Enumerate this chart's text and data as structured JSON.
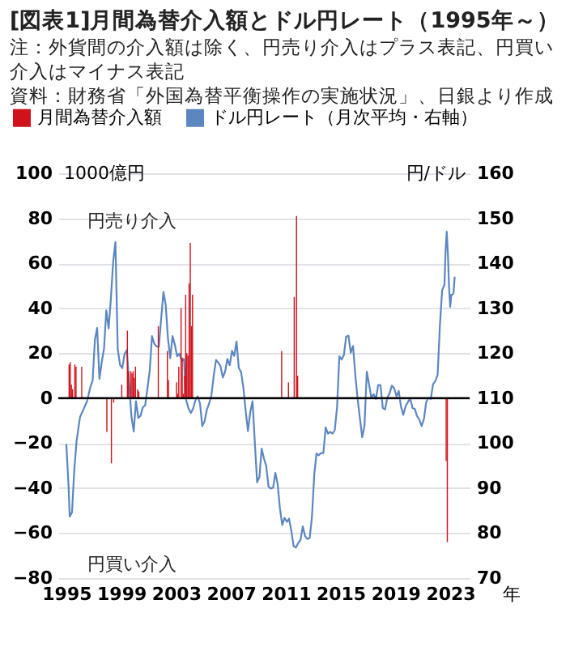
{
  "chart_data": {
    "type": "bar",
    "title": "[図表1]月間為替介入額とドル円レート（1995年～）",
    "ylabel": "1000億円",
    "y2label": "円/ドル",
    "xlabel": "年",
    "annotations": [
      "注：外貨間の介入額は除く、円売り介入はプラス表記、円買い介入はマイナス表記",
      "資料：財務省「外国為替平衡操作の実施状況」、日銀より作成",
      "円売り介入",
      "円買い介入"
    ],
    "series": [
      {
        "name": "月間為替介入額",
        "color": "#d0121b",
        "x": [
          "1995-03",
          "1995-04",
          "1995-05",
          "1995-06",
          "1995-08",
          "1995-09",
          "1996-02",
          "1997-12",
          "1998-04",
          "1998-06",
          "1999-01",
          "1999-06",
          "1999-07",
          "1999-09",
          "1999-10",
          "1999-11",
          "1999-12",
          "2000-01",
          "2000-03",
          "2000-04",
          "2001-09",
          "2002-05",
          "2002-06",
          "2003-01",
          "2003-02",
          "2003-03",
          "2003-05",
          "2003-06",
          "2003-07",
          "2003-08",
          "2003-09",
          "2003-10",
          "2003-11",
          "2003-12",
          "2004-01",
          "2004-02",
          "2004-03",
          "2010-09",
          "2011-03",
          "2011-08",
          "2011-10",
          "2011-11",
          "2022-09",
          "2022-10"
        ],
        "values": [
          15,
          16,
          6,
          4,
          15,
          14,
          14,
          -15,
          -29,
          -2,
          6,
          30,
          12,
          12,
          11,
          12,
          9,
          14,
          4,
          3,
          32,
          21,
          8,
          7,
          2,
          14,
          40,
          18,
          2,
          10,
          46,
          20,
          19,
          51,
          69,
          32,
          46,
          21,
          7,
          45,
          81,
          10,
          -28,
          -64
        ]
      },
      {
        "name": "ドル円レート（月次平均・右軸）",
        "type": "line",
        "axis": "y2",
        "color": "#5b86c0",
        "x": [
          "1995-01",
          "1995-03",
          "1995-04",
          "1995-06",
          "1995-08",
          "1995-10",
          "1996-01",
          "1996-04",
          "1996-07",
          "1996-10",
          "1996-12",
          "1997-02",
          "1997-04",
          "1997-06",
          "1997-08",
          "1997-10",
          "1997-12",
          "1998-02",
          "1998-04",
          "1998-06",
          "1998-08",
          "1998-10",
          "1998-12",
          "1999-02",
          "1999-04",
          "1999-06",
          "1999-08",
          "1999-10",
          "1999-12",
          "2000-02",
          "2000-04",
          "2000-06",
          "2000-08",
          "2000-10",
          "2000-12",
          "2001-02",
          "2001-04",
          "2001-06",
          "2001-08",
          "2001-10",
          "2001-12",
          "2002-02",
          "2002-04",
          "2002-06",
          "2002-08",
          "2002-10",
          "2002-12",
          "2003-02",
          "2003-04",
          "2003-06",
          "2003-08",
          "2003-10",
          "2003-12",
          "2004-02",
          "2004-04",
          "2004-06",
          "2004-08",
          "2004-10",
          "2004-12",
          "2005-02",
          "2005-04",
          "2005-06",
          "2005-08",
          "2005-10",
          "2005-12",
          "2006-02",
          "2006-04",
          "2006-06",
          "2006-08",
          "2006-10",
          "2006-12",
          "2007-02",
          "2007-04",
          "2007-06",
          "2007-08",
          "2007-10",
          "2007-12",
          "2008-02",
          "2008-04",
          "2008-06",
          "2008-08",
          "2008-10",
          "2008-12",
          "2009-02",
          "2009-04",
          "2009-06",
          "2009-08",
          "2009-10",
          "2009-12",
          "2010-02",
          "2010-04",
          "2010-06",
          "2010-08",
          "2010-10",
          "2010-12",
          "2011-02",
          "2011-04",
          "2011-06",
          "2011-08",
          "2011-10",
          "2011-12",
          "2012-02",
          "2012-04",
          "2012-06",
          "2012-08",
          "2012-10",
          "2012-12",
          "2013-02",
          "2013-04",
          "2013-06",
          "2013-08",
          "2013-10",
          "2013-12",
          "2014-02",
          "2014-04",
          "2014-06",
          "2014-08",
          "2014-10",
          "2014-12",
          "2015-02",
          "2015-04",
          "2015-06",
          "2015-08",
          "2015-10",
          "2015-12",
          "2016-02",
          "2016-04",
          "2016-06",
          "2016-08",
          "2016-10",
          "2016-12",
          "2017-02",
          "2017-04",
          "2017-06",
          "2017-08",
          "2017-10",
          "2017-12",
          "2018-02",
          "2018-04",
          "2018-06",
          "2018-08",
          "2018-10",
          "2018-12",
          "2019-02",
          "2019-04",
          "2019-06",
          "2019-08",
          "2019-10",
          "2019-12",
          "2020-02",
          "2020-04",
          "2020-06",
          "2020-08",
          "2020-10",
          "2020-12",
          "2021-02",
          "2021-04",
          "2021-06",
          "2021-08",
          "2021-10",
          "2021-12",
          "2022-02",
          "2022-04",
          "2022-06",
          "2022-08",
          "2022-09",
          "2022-10",
          "2022-11",
          "2022-12",
          "2023-01",
          "2023-02",
          "2023-03",
          "2023-04",
          "2023-05"
        ],
        "values": [
          99.8,
          90.5,
          83.7,
          84.6,
          94,
          100.5,
          105.8,
          107.5,
          109.2,
          112.4,
          113.9,
          123,
          125.6,
          114.3,
          118,
          121,
          129.5,
          125.5,
          132,
          140.3,
          144.7,
          121,
          117.4,
          116.7,
          119.8,
          120.7,
          113.4,
          106,
          102.6,
          109.3,
          105.6,
          106.1,
          108,
          108.4,
          112.2,
          116.2,
          123.8,
          122.1,
          121.5,
          121.4,
          127.6,
          133.6,
          130.8,
          123.3,
          118.9,
          123.8,
          121.9,
          119.3,
          119.9,
          118.3,
          118.7,
          109.5,
          107.7,
          106.7,
          107.7,
          109.5,
          110.4,
          108.8,
          103.8,
          104.9,
          107.4,
          108.8,
          110.6,
          114.9,
          118.5,
          117.9,
          117.1,
          114.6,
          115.9,
          118.7,
          117.3,
          120.5,
          119.4,
          122.6,
          116.7,
          115.8,
          112.3,
          107.1,
          102.7,
          106.9,
          109.3,
          100.2,
          91.3,
          92.5,
          98.8,
          96.6,
          94.9,
          90.3,
          89.9,
          90.1,
          93.4,
          90.9,
          85.5,
          81.8,
          83.4,
          82.5,
          83.2,
          80.5,
          77.1,
          76.8,
          77.8,
          78.5,
          81.5,
          79.3,
          78.7,
          78.9,
          83.6,
          93.1,
          97.7,
          97.3,
          97.8,
          97.8,
          103.5,
          102.1,
          102.5,
          102.1,
          102.9,
          108,
          119.3,
          118.6,
          119.6,
          123.7,
          123.9,
          120.1,
          121.6,
          115,
          109.8,
          105.5,
          101.3,
          103.9,
          115.9,
          113,
          110.1,
          110.9,
          109.8,
          112.9,
          112.9,
          107.8,
          107.5,
          110.1,
          111.1,
          112.8,
          112.2,
          110.4,
          111.6,
          108.1,
          106.3,
          108.2,
          109.1,
          110,
          107.8,
          107.6,
          106,
          105.2,
          103.8,
          105.4,
          109.1,
          110.1,
          109.8,
          113.1,
          113.8,
          115.2,
          126.1,
          134,
          135.2,
          143,
          147,
          142,
          134.8,
          130.3,
          133,
          133,
          133.4,
          137
        ]
      }
    ],
    "xlim": [
      "1994-06",
      "2024-06"
    ],
    "xticks": [
      "1995",
      "1999",
      "2003",
      "2007",
      "2011",
      "2015",
      "2019",
      "2023"
    ],
    "ylim": [
      -80,
      100
    ],
    "yticks": [
      -80,
      -60,
      -40,
      -20,
      0,
      20,
      40,
      60,
      80,
      100
    ],
    "y2lim": [
      70,
      160
    ],
    "y2ticks": [
      70,
      80,
      90,
      100,
      110,
      120,
      130,
      140,
      150,
      160
    ],
    "ref_lines": [
      {
        "axis": "y",
        "value": 0,
        "color": "#000000"
      }
    ],
    "grid": "y",
    "legend": "top left",
    "marker": "none",
    "line_style": "solid"
  }
}
